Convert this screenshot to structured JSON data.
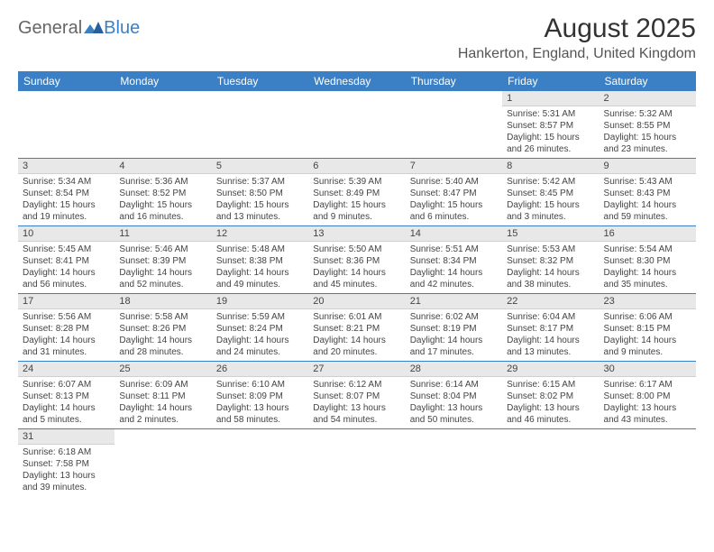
{
  "logo": {
    "general": "General",
    "blue": "Blue"
  },
  "title": "August 2025",
  "location": "Hankerton, England, United Kingdom",
  "header_bg": "#3b7fc4",
  "daynum_bg": "#e8e8e8",
  "weekdays": [
    "Sunday",
    "Monday",
    "Tuesday",
    "Wednesday",
    "Thursday",
    "Friday",
    "Saturday"
  ],
  "weeks": [
    [
      null,
      null,
      null,
      null,
      null,
      {
        "n": "1",
        "sr": "Sunrise: 5:31 AM",
        "ss": "Sunset: 8:57 PM",
        "d1": "Daylight: 15 hours",
        "d2": "and 26 minutes."
      },
      {
        "n": "2",
        "sr": "Sunrise: 5:32 AM",
        "ss": "Sunset: 8:55 PM",
        "d1": "Daylight: 15 hours",
        "d2": "and 23 minutes."
      }
    ],
    [
      {
        "n": "3",
        "sr": "Sunrise: 5:34 AM",
        "ss": "Sunset: 8:54 PM",
        "d1": "Daylight: 15 hours",
        "d2": "and 19 minutes."
      },
      {
        "n": "4",
        "sr": "Sunrise: 5:36 AM",
        "ss": "Sunset: 8:52 PM",
        "d1": "Daylight: 15 hours",
        "d2": "and 16 minutes."
      },
      {
        "n": "5",
        "sr": "Sunrise: 5:37 AM",
        "ss": "Sunset: 8:50 PM",
        "d1": "Daylight: 15 hours",
        "d2": "and 13 minutes."
      },
      {
        "n": "6",
        "sr": "Sunrise: 5:39 AM",
        "ss": "Sunset: 8:49 PM",
        "d1": "Daylight: 15 hours",
        "d2": "and 9 minutes."
      },
      {
        "n": "7",
        "sr": "Sunrise: 5:40 AM",
        "ss": "Sunset: 8:47 PM",
        "d1": "Daylight: 15 hours",
        "d2": "and 6 minutes."
      },
      {
        "n": "8",
        "sr": "Sunrise: 5:42 AM",
        "ss": "Sunset: 8:45 PM",
        "d1": "Daylight: 15 hours",
        "d2": "and 3 minutes."
      },
      {
        "n": "9",
        "sr": "Sunrise: 5:43 AM",
        "ss": "Sunset: 8:43 PM",
        "d1": "Daylight: 14 hours",
        "d2": "and 59 minutes."
      }
    ],
    [
      {
        "n": "10",
        "sr": "Sunrise: 5:45 AM",
        "ss": "Sunset: 8:41 PM",
        "d1": "Daylight: 14 hours",
        "d2": "and 56 minutes."
      },
      {
        "n": "11",
        "sr": "Sunrise: 5:46 AM",
        "ss": "Sunset: 8:39 PM",
        "d1": "Daylight: 14 hours",
        "d2": "and 52 minutes."
      },
      {
        "n": "12",
        "sr": "Sunrise: 5:48 AM",
        "ss": "Sunset: 8:38 PM",
        "d1": "Daylight: 14 hours",
        "d2": "and 49 minutes."
      },
      {
        "n": "13",
        "sr": "Sunrise: 5:50 AM",
        "ss": "Sunset: 8:36 PM",
        "d1": "Daylight: 14 hours",
        "d2": "and 45 minutes."
      },
      {
        "n": "14",
        "sr": "Sunrise: 5:51 AM",
        "ss": "Sunset: 8:34 PM",
        "d1": "Daylight: 14 hours",
        "d2": "and 42 minutes."
      },
      {
        "n": "15",
        "sr": "Sunrise: 5:53 AM",
        "ss": "Sunset: 8:32 PM",
        "d1": "Daylight: 14 hours",
        "d2": "and 38 minutes."
      },
      {
        "n": "16",
        "sr": "Sunrise: 5:54 AM",
        "ss": "Sunset: 8:30 PM",
        "d1": "Daylight: 14 hours",
        "d2": "and 35 minutes."
      }
    ],
    [
      {
        "n": "17",
        "sr": "Sunrise: 5:56 AM",
        "ss": "Sunset: 8:28 PM",
        "d1": "Daylight: 14 hours",
        "d2": "and 31 minutes."
      },
      {
        "n": "18",
        "sr": "Sunrise: 5:58 AM",
        "ss": "Sunset: 8:26 PM",
        "d1": "Daylight: 14 hours",
        "d2": "and 28 minutes."
      },
      {
        "n": "19",
        "sr": "Sunrise: 5:59 AM",
        "ss": "Sunset: 8:24 PM",
        "d1": "Daylight: 14 hours",
        "d2": "and 24 minutes."
      },
      {
        "n": "20",
        "sr": "Sunrise: 6:01 AM",
        "ss": "Sunset: 8:21 PM",
        "d1": "Daylight: 14 hours",
        "d2": "and 20 minutes."
      },
      {
        "n": "21",
        "sr": "Sunrise: 6:02 AM",
        "ss": "Sunset: 8:19 PM",
        "d1": "Daylight: 14 hours",
        "d2": "and 17 minutes."
      },
      {
        "n": "22",
        "sr": "Sunrise: 6:04 AM",
        "ss": "Sunset: 8:17 PM",
        "d1": "Daylight: 14 hours",
        "d2": "and 13 minutes."
      },
      {
        "n": "23",
        "sr": "Sunrise: 6:06 AM",
        "ss": "Sunset: 8:15 PM",
        "d1": "Daylight: 14 hours",
        "d2": "and 9 minutes."
      }
    ],
    [
      {
        "n": "24",
        "sr": "Sunrise: 6:07 AM",
        "ss": "Sunset: 8:13 PM",
        "d1": "Daylight: 14 hours",
        "d2": "and 5 minutes."
      },
      {
        "n": "25",
        "sr": "Sunrise: 6:09 AM",
        "ss": "Sunset: 8:11 PM",
        "d1": "Daylight: 14 hours",
        "d2": "and 2 minutes."
      },
      {
        "n": "26",
        "sr": "Sunrise: 6:10 AM",
        "ss": "Sunset: 8:09 PM",
        "d1": "Daylight: 13 hours",
        "d2": "and 58 minutes."
      },
      {
        "n": "27",
        "sr": "Sunrise: 6:12 AM",
        "ss": "Sunset: 8:07 PM",
        "d1": "Daylight: 13 hours",
        "d2": "and 54 minutes."
      },
      {
        "n": "28",
        "sr": "Sunrise: 6:14 AM",
        "ss": "Sunset: 8:04 PM",
        "d1": "Daylight: 13 hours",
        "d2": "and 50 minutes."
      },
      {
        "n": "29",
        "sr": "Sunrise: 6:15 AM",
        "ss": "Sunset: 8:02 PM",
        "d1": "Daylight: 13 hours",
        "d2": "and 46 minutes."
      },
      {
        "n": "30",
        "sr": "Sunrise: 6:17 AM",
        "ss": "Sunset: 8:00 PM",
        "d1": "Daylight: 13 hours",
        "d2": "and 43 minutes."
      }
    ],
    [
      {
        "n": "31",
        "sr": "Sunrise: 6:18 AM",
        "ss": "Sunset: 7:58 PM",
        "d1": "Daylight: 13 hours",
        "d2": "and 39 minutes."
      },
      null,
      null,
      null,
      null,
      null,
      null
    ]
  ]
}
